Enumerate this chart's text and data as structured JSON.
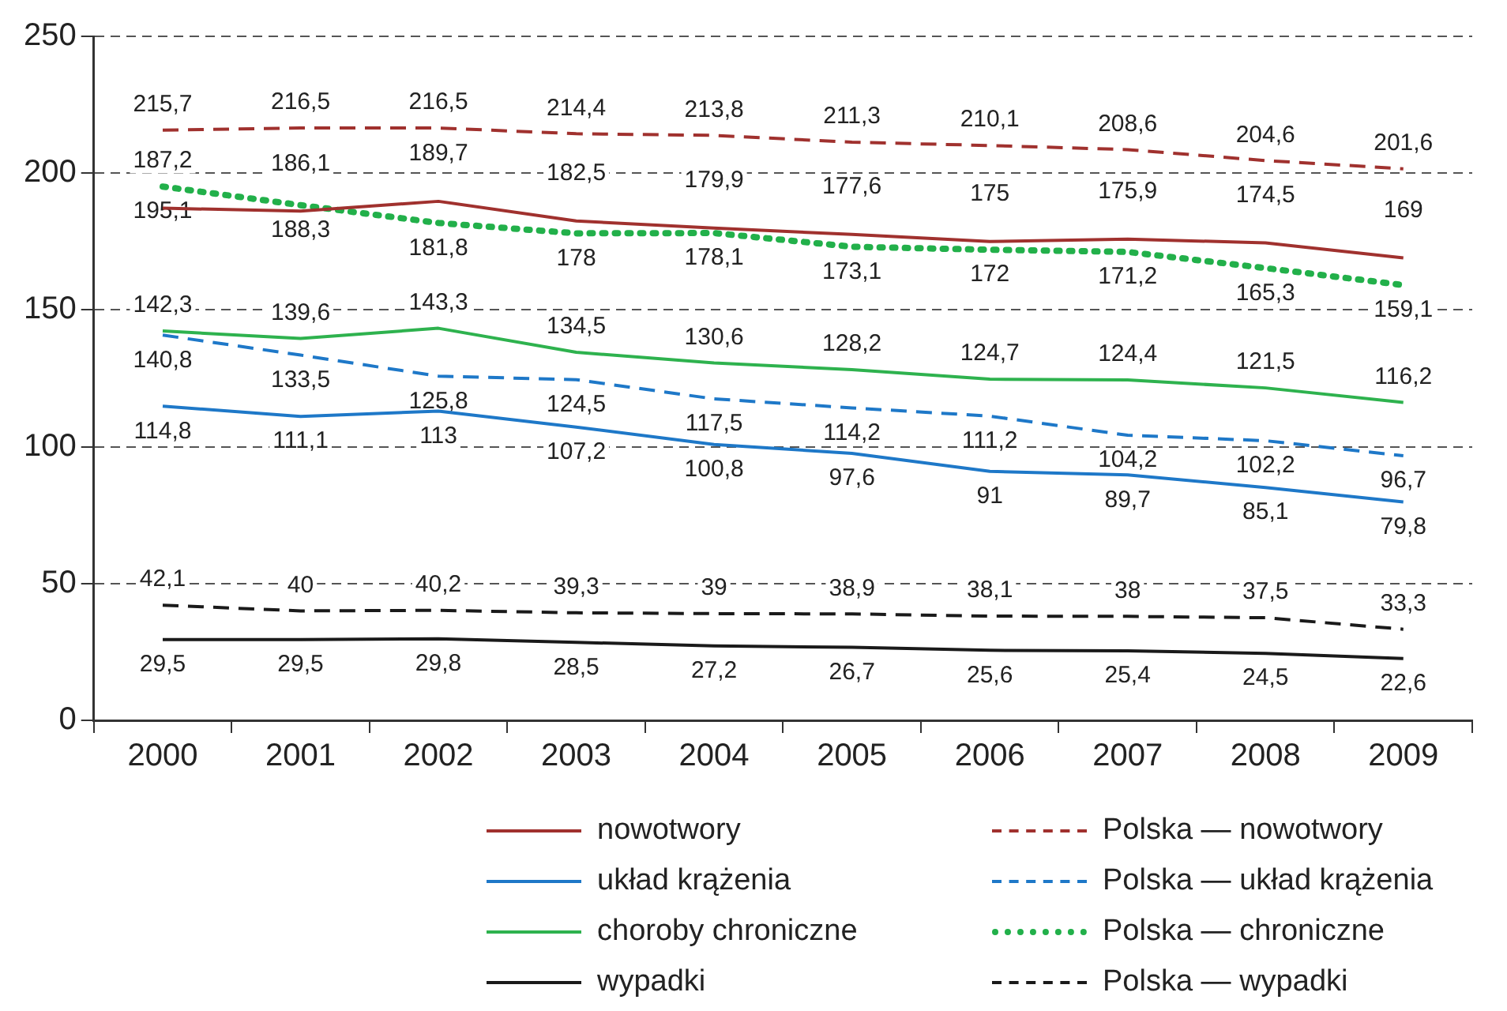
{
  "chart_data": {
    "type": "line",
    "categories": [
      "2000",
      "2001",
      "2002",
      "2003",
      "2004",
      "2005",
      "2006",
      "2007",
      "2008",
      "2009"
    ],
    "ylim": [
      0,
      250
    ],
    "yticks": [
      0,
      50,
      100,
      150,
      200,
      250
    ],
    "grid": "y",
    "legend": "bottom",
    "marker": "none",
    "series": [
      {
        "name": "nowotwory",
        "color": "#a0312e",
        "line_style": "solid",
        "values": [
          187.2,
          186.1,
          189.7,
          182.5,
          179.9,
          177.6,
          175,
          175.9,
          174.5,
          169
        ],
        "value_labels": [
          "187,2",
          "186,1",
          "189,7",
          "182,5",
          "179,9",
          "177,6",
          "175",
          "175,9",
          "174,5",
          "169"
        ]
      },
      {
        "name": "układ krążenia",
        "color": "#1e78c8",
        "line_style": "solid",
        "values": [
          114.8,
          111.1,
          113,
          107.2,
          100.8,
          97.6,
          91,
          89.7,
          85.1,
          79.8
        ],
        "value_labels": [
          "114,8",
          "111,1",
          "113",
          "107,2",
          "100,8",
          "97,6",
          "91",
          "89,7",
          "85,1",
          "79,8"
        ]
      },
      {
        "name": "choroby chroniczne",
        "color": "#2eb24e",
        "line_style": "solid",
        "values": [
          142.3,
          139.6,
          143.3,
          134.5,
          130.6,
          128.2,
          124.7,
          124.4,
          121.5,
          116.2
        ],
        "value_labels": [
          "142,3",
          "139,6",
          "143,3",
          "134,5",
          "130,6",
          "128,2",
          "124,7",
          "124,4",
          "121,5",
          "116,2"
        ]
      },
      {
        "name": "wypadki",
        "color": "#1a1a1a",
        "line_style": "solid",
        "values": [
          29.5,
          29.5,
          29.8,
          28.5,
          27.2,
          26.7,
          25.6,
          25.4,
          24.5,
          22.6
        ],
        "value_labels": [
          "29,5",
          "29,5",
          "29,8",
          "28,5",
          "27,2",
          "26,7",
          "25,6",
          "25,4",
          "24,5",
          "22,6"
        ]
      },
      {
        "name": "Polska — nowotwory",
        "color": "#a0312e",
        "line_style": "dashed",
        "values": [
          215.7,
          216.5,
          216.5,
          214.4,
          213.8,
          211.3,
          210.1,
          208.6,
          204.6,
          201.6
        ],
        "value_labels": [
          "215,7",
          "216,5",
          "216,5",
          "214,4",
          "213,8",
          "211,3",
          "210,1",
          "208,6",
          "204,6",
          "201,6"
        ]
      },
      {
        "name": "Polska — układ krążenia",
        "color": "#1e78c8",
        "line_style": "dashed",
        "values": [
          140.8,
          133.5,
          125.8,
          124.5,
          117.5,
          114.2,
          111.2,
          104.2,
          102.2,
          96.7
        ],
        "value_labels": [
          "140,8",
          "133,5",
          "125,8",
          "124,5",
          "117,5",
          "114,2",
          "111,2",
          "104,2",
          "102,2",
          "96,7"
        ]
      },
      {
        "name": "Polska — chroniczne",
        "color": "#22b04a",
        "line_style": "dotted",
        "values": [
          195.1,
          188.3,
          181.8,
          178,
          178.1,
          173.1,
          172,
          171.2,
          165.3,
          159.1
        ],
        "value_labels": [
          "195,1",
          "188,3",
          "181,8",
          "178",
          "178,1",
          "173,1",
          "172",
          "171,2",
          "165,3",
          "159,1"
        ]
      },
      {
        "name": "Polska — wypadki",
        "color": "#1a1a1a",
        "line_style": "dashed",
        "values": [
          42.1,
          40,
          40.2,
          39.3,
          39,
          38.9,
          38.1,
          38,
          37.5,
          33.3
        ],
        "value_labels": [
          "42,1",
          "40",
          "40,2",
          "39,3",
          "39",
          "38,9",
          "38,1",
          "38",
          "37,5",
          "33,3"
        ]
      }
    ]
  }
}
